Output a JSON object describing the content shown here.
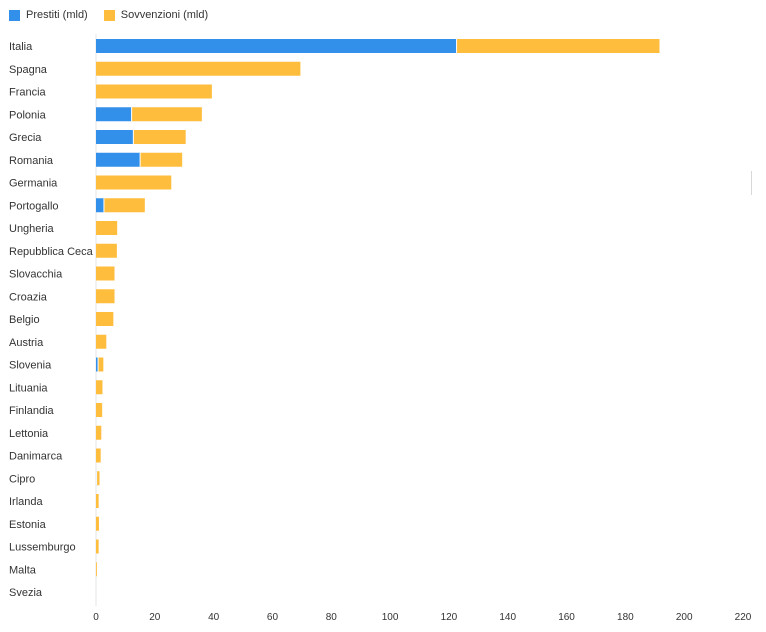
{
  "legend": {
    "prestiti_label": "Prestiti (mld)",
    "sovvenzioni_label": "Sovvenzioni (mld)"
  },
  "colors": {
    "prestiti": "#3390ea",
    "sovvenzioni": "#ffbd3e",
    "axis": "#e6e6e6"
  },
  "chart_data": {
    "type": "bar",
    "orientation": "horizontal",
    "stacked": true,
    "categories": [
      "Italia",
      "Spagna",
      "Francia",
      "Polonia",
      "Grecia",
      "Romania",
      "Germania",
      "Portogallo",
      "Ungheria",
      "Repubblica Ceca",
      "Slovacchia",
      "Croazia",
      "Belgio",
      "Austria",
      "Slovenia",
      "Lituania",
      "Finlandia",
      "Lettonia",
      "Danimarca",
      "Cipro",
      "Irlanda",
      "Estonia",
      "Lussemburgo",
      "Malta",
      "Svezia"
    ],
    "series": [
      {
        "name": "Prestiti (mld)",
        "values": [
          122.6,
          0,
          0,
          12.1,
          12.7,
          15.0,
          0,
          2.7,
          0,
          0,
          0,
          0,
          0,
          0,
          0.7,
          0,
          0,
          0,
          0,
          0.2,
          0,
          0,
          0,
          0,
          0
        ]
      },
      {
        "name": "Sovvenzioni (mld)",
        "values": [
          69.0,
          69.5,
          39.4,
          23.9,
          17.8,
          14.3,
          25.6,
          13.9,
          7.2,
          7.1,
          6.3,
          6.3,
          5.9,
          3.5,
          1.8,
          2.2,
          2.1,
          1.8,
          1.6,
          1.0,
          0.9,
          1.0,
          0.9,
          0.3,
          0.0
        ]
      }
    ],
    "xlim": [
      0,
      220
    ],
    "xticks": [
      0,
      20,
      40,
      60,
      80,
      100,
      120,
      140,
      160,
      180,
      200,
      220
    ],
    "grid": false,
    "legend_position": "top-left"
  }
}
